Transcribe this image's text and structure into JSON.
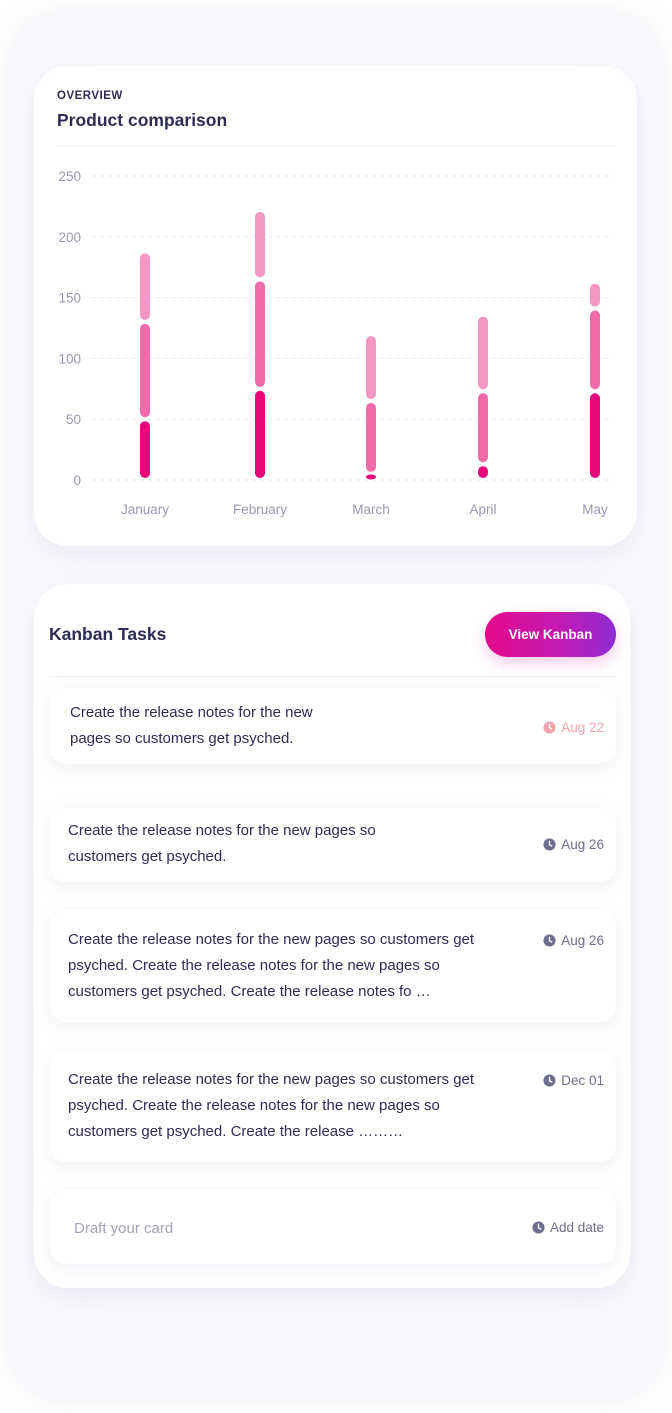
{
  "chart_card": {
    "eyebrow": "OVERVIEW",
    "title": "Product comparison"
  },
  "chart_data": {
    "type": "bar",
    "stacked": true,
    "categories": [
      "January",
      "February",
      "March",
      "April",
      "May"
    ],
    "series": [
      {
        "values": [
          50,
          75,
          5,
          13,
          73
        ],
        "color": "#e8087c"
      },
      {
        "values": [
          80,
          90,
          60,
          60,
          68
        ],
        "color": "#f06baa"
      },
      {
        "values": [
          58,
          57,
          55,
          63,
          22
        ],
        "color": "#f597c4"
      }
    ],
    "yticks": [
      0,
      50,
      100,
      150,
      200,
      250
    ],
    "ylim": [
      0,
      250
    ],
    "grid": true,
    "xlabel": "",
    "ylabel": ""
  },
  "kanban": {
    "title": "Kanban Tasks",
    "button_label": "View Kanban",
    "tasks": [
      {
        "text": "Create the release notes for the new pages so customers get psyched.",
        "date": "Aug 22",
        "date_color": "#f2a3ad"
      },
      {
        "text": "Create the release notes for the new pages so customers get psyched.",
        "date": "Aug 26",
        "date_color": "#6e6d8c"
      },
      {
        "text": "Create the release notes for the new pages so customers get psyched. Create the release notes for the new pages so customers get psyched.  Create the release notes fo …",
        "date": "Aug 26",
        "date_color": "#6e6d8c"
      },
      {
        "text": "Create the release notes for the new pages so customers get psyched. Create the release notes for the new pages so customers get psyched.  Create the release ………",
        "date": "Dec 01",
        "date_color": "#6e6d8c"
      }
    ],
    "draft": {
      "placeholder": "Draft your card",
      "add_date_label": "Add date"
    }
  },
  "icons": {
    "date": "clock-icon"
  }
}
